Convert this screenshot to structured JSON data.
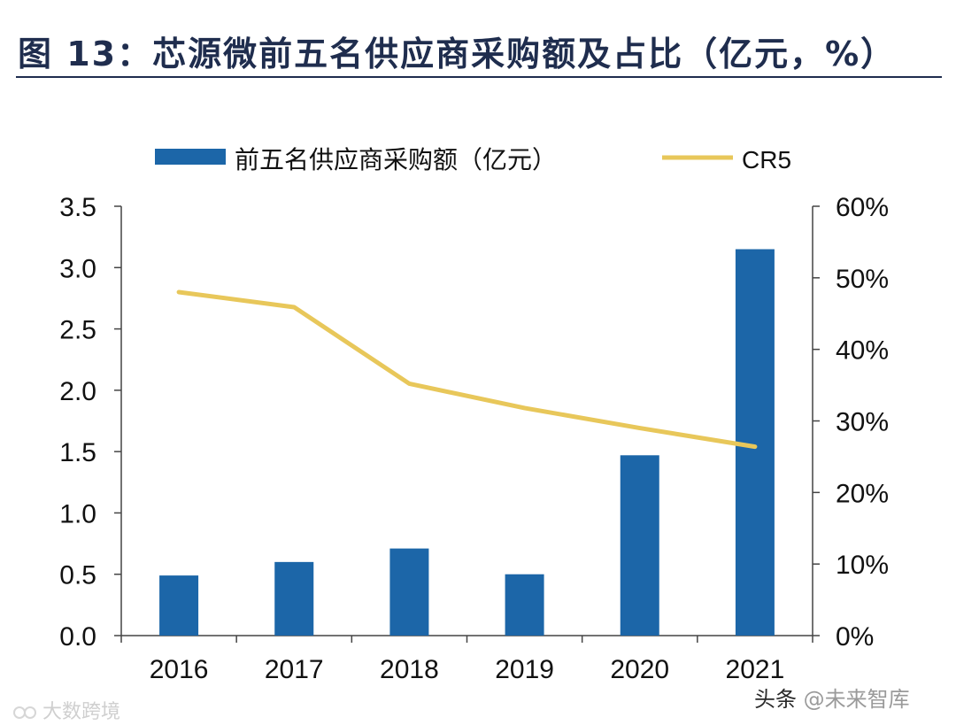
{
  "title": "图 13：芯源微前五名供应商采购额及占比（亿元，%）",
  "watermarks": {
    "left": "大数跨境",
    "right_prefix": "头条",
    "right_brand": "@未来智库"
  },
  "colors": {
    "bar": "#1c66a8",
    "line": "#e8c75a",
    "axis": "#444444",
    "title": "#1f2d4e"
  },
  "chart_data": {
    "type": "bar",
    "categories": [
      "2016",
      "2017",
      "2018",
      "2019",
      "2020",
      "2021"
    ],
    "series": [
      {
        "name": "前五名供应商采购额（亿元）",
        "type": "bar",
        "axis": "left",
        "values": [
          0.49,
          0.6,
          0.71,
          0.5,
          1.47,
          3.15
        ]
      },
      {
        "name": "CR5",
        "type": "line",
        "axis": "right",
        "values": [
          0.48,
          0.459,
          0.352,
          0.318,
          0.29,
          0.264
        ]
      }
    ],
    "y_left": {
      "min": 0,
      "max": 3.5,
      "ticks": [
        "0.0",
        "0.5",
        "1.0",
        "1.5",
        "2.0",
        "2.5",
        "3.0",
        "3.5"
      ]
    },
    "y_right": {
      "min": 0,
      "max": 0.6,
      "ticks": [
        "0%",
        "10%",
        "20%",
        "30%",
        "40%",
        "50%",
        "60%"
      ]
    },
    "legend": [
      "前五名供应商采购额（亿元）",
      "CR5"
    ],
    "legend_position": "top"
  }
}
